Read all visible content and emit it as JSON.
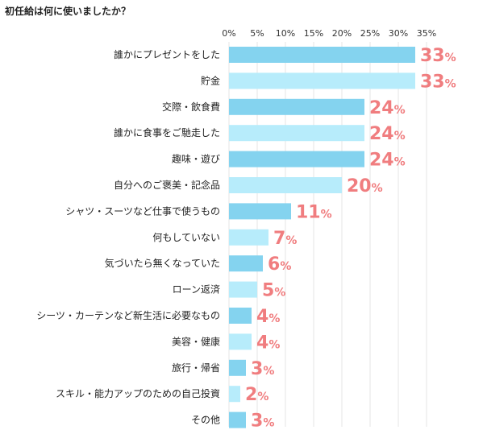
{
  "title": "初任給は何に使いましたか？",
  "colors": {
    "bar_dark": "#84d3ef",
    "bar_light": "#b7ecfb",
    "label": "#f07d7f",
    "grid": "#e4e4e4"
  },
  "chart_data": {
    "type": "bar",
    "orientation": "horizontal",
    "title": "初任給は何に使いましたか？",
    "xlim": [
      0,
      35
    ],
    "ticks": [
      "0%",
      "5%",
      "10%",
      "15%",
      "20%",
      "25%",
      "30%",
      "35%"
    ],
    "tick_values": [
      0,
      5,
      10,
      15,
      20,
      25,
      30,
      35
    ],
    "unit": "%",
    "grid": true,
    "categories": [
      "誰かにプレゼントをした",
      "貯金",
      "交際・飲食費",
      "誰かに食事をご馳走した",
      "趣味・遊び",
      "自分へのご褒美・記念品",
      "シャツ・スーツなど仕事で使うもの",
      "何もしていない",
      "気づいたら無くなっていた",
      "ローン返済",
      "シーツ・カーテンなど新生活に必要なもの",
      "美容・健康",
      "旅行・帰省",
      "スキル・能力アップのための自己投資",
      "その他"
    ],
    "values": [
      33,
      33,
      24,
      24,
      24,
      20,
      11,
      7,
      6,
      5,
      4,
      4,
      3,
      2,
      3
    ]
  }
}
